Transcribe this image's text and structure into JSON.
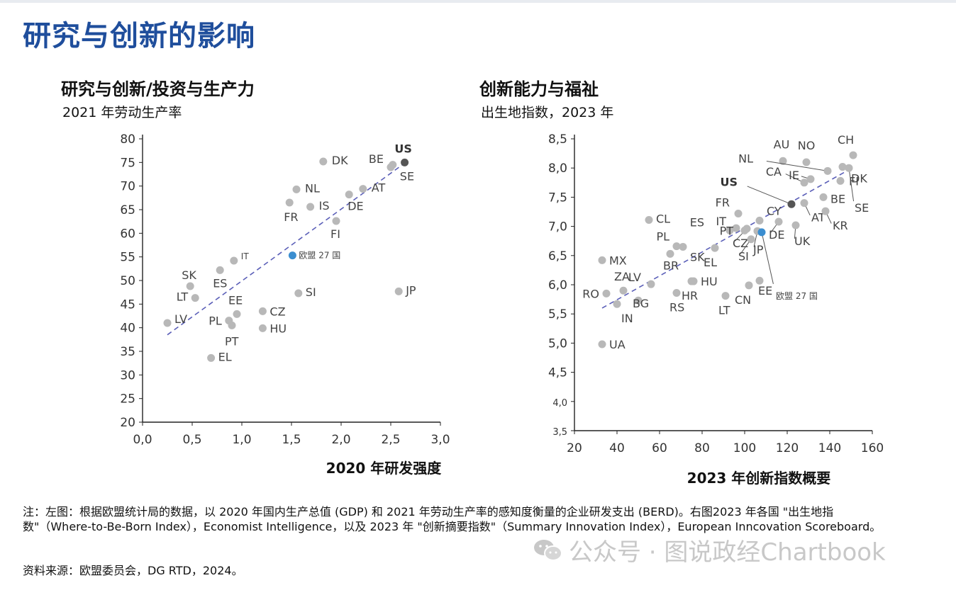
{
  "page_title": "研究与创新的影响",
  "note": "注：左图：根据欧盟统计局的数据，以 2020 年国内生产总值 (GDP) 和 2021 年劳动生产率的感知度衡量的企业研发支出 (BERD)。右图2023 年各国 \"出生地指数\"（Where-to-Be-Born Index），Economist Intelligence，以及 2023 年 \"创新摘要指数\"（Summary Innovation Index），European Inncovation Scoreboard。",
  "source": "资料来源：欧盟委员会，DG RTD，2024。",
  "watermark": "公众号 · 图说政经Chartbook",
  "colors": {
    "title": "#1f4e9c",
    "point": "#b8b8b8",
    "eu": "#3b8ed0",
    "us": "#555555",
    "trend": "#5b5fb8"
  },
  "chart_data": [
    {
      "type": "scatter",
      "title": "研究与创新/投资与生产力",
      "ylabel": "2021 年劳动生产率",
      "xlabel": "2020 年研发强度",
      "xlim": [
        0,
        3
      ],
      "ylim": [
        20,
        80
      ],
      "xticks": [
        "0,0",
        "0,5",
        "1,0",
        "1,5",
        "2,0",
        "2,5",
        "3,0"
      ],
      "yticks": [
        "20",
        "25",
        "30",
        "35",
        "40",
        "45",
        "50",
        "55",
        "60",
        "65",
        "70",
        "75",
        "80"
      ],
      "trendline": [
        [
          0.25,
          38.5
        ],
        [
          2.65,
          75
        ]
      ],
      "points": [
        {
          "label": "US",
          "x": 2.64,
          "y": 75,
          "kind": "us"
        },
        {
          "label": "DK",
          "x": 1.82,
          "y": 75.2,
          "kind": "normal"
        },
        {
          "label": "BE",
          "x": 2.5,
          "y": 74,
          "kind": "normal"
        },
        {
          "label": "SE",
          "x": 2.52,
          "y": 74.5,
          "kind": "normal"
        },
        {
          "label": "NL",
          "x": 1.55,
          "y": 69.3,
          "kind": "normal"
        },
        {
          "label": "AT",
          "x": 2.22,
          "y": 69.4,
          "kind": "normal"
        },
        {
          "label": "DE",
          "x": 2.08,
          "y": 68.2,
          "kind": "normal"
        },
        {
          "label": "FR",
          "x": 1.48,
          "y": 66.5,
          "kind": "normal"
        },
        {
          "label": "IS",
          "x": 1.69,
          "y": 65.6,
          "kind": "normal"
        },
        {
          "label": "FI",
          "x": 1.95,
          "y": 62.6,
          "kind": "normal"
        },
        {
          "label": "欧盟 27 国",
          "x": 1.51,
          "y": 55.3,
          "kind": "eu"
        },
        {
          "label": "IT",
          "x": 0.92,
          "y": 54.2,
          "kind": "normal"
        },
        {
          "label": "SK",
          "x": 0.48,
          "y": 48.8,
          "kind": "normal"
        },
        {
          "label": "ES",
          "x": 0.78,
          "y": 52.2,
          "kind": "normal"
        },
        {
          "label": "LT",
          "x": 0.53,
          "y": 46.3,
          "kind": "normal"
        },
        {
          "label": "SI",
          "x": 1.57,
          "y": 47.3,
          "kind": "normal"
        },
        {
          "label": "JP",
          "x": 2.58,
          "y": 47.7,
          "kind": "normal"
        },
        {
          "label": "EE",
          "x": 0.95,
          "y": 42.9,
          "kind": "normal"
        },
        {
          "label": "CZ",
          "x": 1.21,
          "y": 43.5,
          "kind": "normal"
        },
        {
          "label": "PL",
          "x": 0.87,
          "y": 41.5,
          "kind": "normal"
        },
        {
          "label": "PT",
          "x": 0.9,
          "y": 40.5,
          "kind": "normal"
        },
        {
          "label": "HU",
          "x": 1.21,
          "y": 39.9,
          "kind": "normal"
        },
        {
          "label": "LV",
          "x": 0.25,
          "y": 41,
          "kind": "normal"
        },
        {
          "label": "EL",
          "x": 0.69,
          "y": 33.6,
          "kind": "normal"
        }
      ]
    },
    {
      "type": "scatter",
      "title": "创新能力与福祉",
      "ylabel": "出生地指数，2023 年",
      "xlabel": "2023 年创新指数概要",
      "xlim": [
        20,
        160
      ],
      "ylim": [
        3.5,
        8.5
      ],
      "xticks": [
        "20",
        "40",
        "60",
        "80",
        "100",
        "120",
        "140",
        "160"
      ],
      "yticks": [
        "3,5",
        "4,0",
        "4,5",
        "5,0",
        "5,5",
        "6,0",
        "6,5",
        "7,0",
        "7,5",
        "8,0",
        "8,5"
      ],
      "trendline": [
        [
          33,
          5.6
        ],
        [
          148,
          7.95
        ]
      ],
      "points": [
        {
          "label": "AU",
          "x": 118,
          "y": 8.12,
          "kind": "normal"
        },
        {
          "label": "NO",
          "x": 129,
          "y": 8.1,
          "kind": "normal"
        },
        {
          "label": "CH",
          "x": 151,
          "y": 8.22,
          "kind": "normal"
        },
        {
          "label": "NL",
          "x": 139,
          "y": 7.95,
          "kind": "normal"
        },
        {
          "label": "DK",
          "x": 146,
          "y": 8.02,
          "kind": "normal"
        },
        {
          "label": "SE",
          "x": 149,
          "y": 8.0,
          "kind": "normal"
        },
        {
          "label": "CA",
          "x": 128,
          "y": 7.75,
          "kind": "normal"
        },
        {
          "label": "IE",
          "x": 131,
          "y": 7.81,
          "kind": "normal"
        },
        {
          "label": "FI",
          "x": 145,
          "y": 7.78,
          "kind": "normal"
        },
        {
          "label": "US",
          "x": 122,
          "y": 7.38,
          "kind": "us"
        },
        {
          "label": "BE",
          "x": 137,
          "y": 7.5,
          "kind": "normal"
        },
        {
          "label": "AT",
          "x": 128,
          "y": 7.4,
          "kind": "normal"
        },
        {
          "label": "KR",
          "x": 138,
          "y": 7.26,
          "kind": "normal"
        },
        {
          "label": "UK",
          "x": 124,
          "y": 7.02,
          "kind": "normal"
        },
        {
          "label": "DE",
          "x": 116,
          "y": 7.08,
          "kind": "normal"
        },
        {
          "label": "FR",
          "x": 97,
          "y": 7.22,
          "kind": "normal"
        },
        {
          "label": "CY",
          "x": 107,
          "y": 7.1,
          "kind": "normal"
        },
        {
          "label": "IT",
          "x": 96,
          "y": 6.97,
          "kind": "normal"
        },
        {
          "label": "ES",
          "x": 93,
          "y": 6.93,
          "kind": "normal"
        },
        {
          "label": "CZ",
          "x": 101,
          "y": 6.96,
          "kind": "normal"
        },
        {
          "label": "PT",
          "x": 100,
          "y": 6.93,
          "kind": "normal"
        },
        {
          "label": "SI",
          "x": 103,
          "y": 6.78,
          "kind": "normal"
        },
        {
          "label": "JP",
          "x": 106,
          "y": 6.92,
          "kind": "normal"
        },
        {
          "label": "欧盟 27 国",
          "x": 108,
          "y": 6.9,
          "kind": "eu"
        },
        {
          "label": "CL",
          "x": 55,
          "y": 7.11,
          "kind": "normal"
        },
        {
          "label": "PL",
          "x": 68,
          "y": 6.66,
          "kind": "normal"
        },
        {
          "label": "SK",
          "x": 71,
          "y": 6.65,
          "kind": "normal"
        },
        {
          "label": "BR",
          "x": 65,
          "y": 6.53,
          "kind": "normal"
        },
        {
          "label": "EL",
          "x": 86,
          "y": 6.63,
          "kind": "normal"
        },
        {
          "label": "MX",
          "x": 33,
          "y": 6.42,
          "kind": "normal"
        },
        {
          "label": "HU",
          "x": 76,
          "y": 6.06,
          "kind": "normal"
        },
        {
          "label": "ZA",
          "x": 43,
          "y": 5.9,
          "kind": "normal"
        },
        {
          "label": "LV",
          "x": 56,
          "y": 6.01,
          "kind": "normal"
        },
        {
          "label": "RO",
          "x": 35,
          "y": 5.85,
          "kind": "normal"
        },
        {
          "label": "HR",
          "x": 75,
          "y": 6.06,
          "kind": "normal"
        },
        {
          "label": "BG",
          "x": 50,
          "y": 5.73,
          "kind": "normal"
        },
        {
          "label": "IN",
          "x": 40,
          "y": 5.67,
          "kind": "normal"
        },
        {
          "label": "RS",
          "x": 68,
          "y": 5.86,
          "kind": "normal"
        },
        {
          "label": "LT",
          "x": 91,
          "y": 5.81,
          "kind": "normal"
        },
        {
          "label": "CN",
          "x": 102,
          "y": 5.99,
          "kind": "normal"
        },
        {
          "label": "EE",
          "x": 107,
          "y": 6.07,
          "kind": "normal"
        },
        {
          "label": "UA",
          "x": 33,
          "y": 4.98,
          "kind": "normal"
        }
      ]
    }
  ]
}
